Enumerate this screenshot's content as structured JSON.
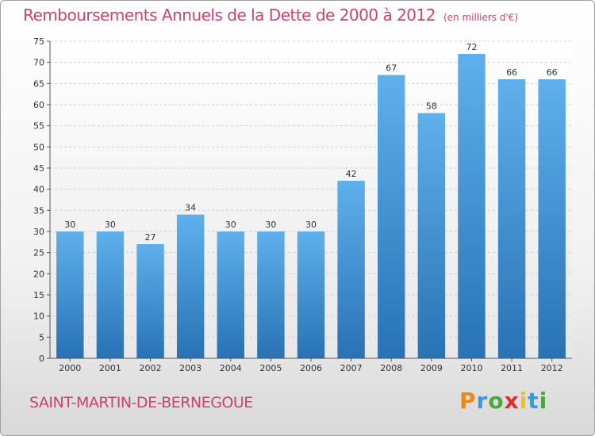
{
  "chart_data": {
    "type": "bar",
    "title": "Remboursements Annuels de la Dette de 2000 à 2012",
    "unit_note": "(en milliers d'€)",
    "categories": [
      "2000",
      "2001",
      "2002",
      "2003",
      "2004",
      "2005",
      "2006",
      "2007",
      "2008",
      "2009",
      "2010",
      "2011",
      "2012"
    ],
    "values": [
      30,
      30,
      27,
      34,
      30,
      30,
      30,
      42,
      67,
      58,
      72,
      66,
      66
    ],
    "ylim": [
      0,
      75
    ],
    "yticks": [
      0,
      5,
      10,
      15,
      20,
      25,
      30,
      35,
      40,
      45,
      50,
      55,
      60,
      65,
      70,
      75
    ],
    "grid": true,
    "bar_color": "#3a8fd6"
  },
  "footer": {
    "city": "SAINT-MARTIN-DE-BERNEGOUE"
  },
  "logo": {
    "letters": [
      "P",
      "r",
      "o",
      "x",
      "i",
      "t",
      "i"
    ],
    "colors": [
      "#e8891a",
      "#3d9ad8",
      "#4aa83c",
      "#d8322a",
      "#e8c21a",
      "#3d9ad8",
      "#4aa83c"
    ]
  }
}
